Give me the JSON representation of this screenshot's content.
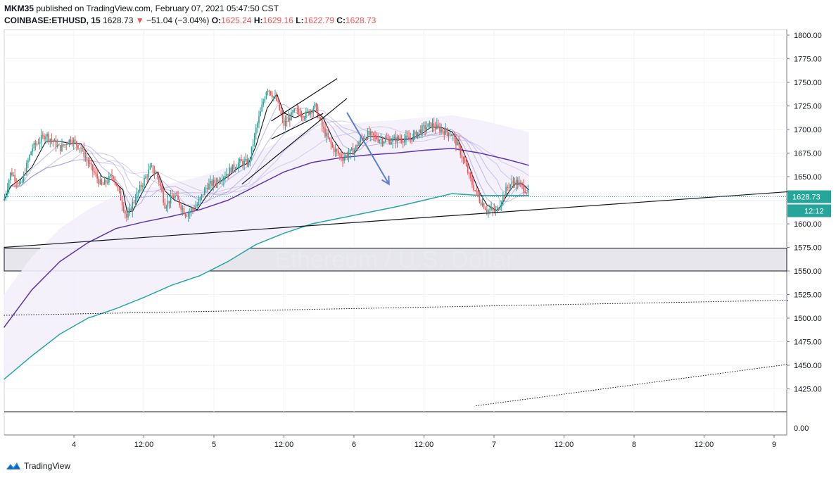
{
  "header": {
    "author": "MKM35",
    "published": "published on TradingView.com, February 07, 2021 05:47:50 CST",
    "symbol": "COINBASE:ETHUSD, 15",
    "last": "1628.73",
    "change_arrow": "▼",
    "change": "−51.04 (−3.04%)",
    "o_label": "O:",
    "o_value": "1625.24",
    "h_label": "H:",
    "h_value": "1629.16",
    "l_label": "L:",
    "l_value": "1622.79",
    "c_label": "C:",
    "c_value": "1628.73"
  },
  "branding": {
    "name": "TradingView",
    "icon": "tradingview-logo-icon"
  },
  "colors": {
    "up": "#26a69a",
    "down": "#ef5350",
    "ema_main": "#5e35b1",
    "ema_light": "#9b8fd3",
    "teal": "#26a6a6",
    "trendline": "#131722",
    "arrow": "#5b7fd1",
    "zone": "#e6e6ec"
  },
  "chart_data": {
    "type": "candlestick",
    "y_axis": {
      "range": [
        1405,
        1805
      ],
      "ticks": [
        "1800.00",
        "1775.00",
        "1750.00",
        "1725.00",
        "1700.00",
        "1675.00",
        "1650.00",
        "1625.00",
        "1600.00",
        "1575.00",
        "1550.00",
        "1525.00",
        "1500.00",
        "1475.00",
        "1450.00",
        "1425.00"
      ],
      "lower_pane_tick": "0.00"
    },
    "x_axis": {
      "ticks": [
        {
          "label": "4",
          "x": 3.0
        },
        {
          "label": "12:00",
          "x": 3.5
        },
        {
          "label": "5",
          "x": 4.0
        },
        {
          "label": "12:00",
          "x": 4.5
        },
        {
          "label": "6",
          "x": 5.0
        },
        {
          "label": "12:00",
          "x": 5.5
        },
        {
          "label": "7",
          "x": 6.0
        },
        {
          "label": "12:00",
          "x": 6.5
        },
        {
          "label": "8",
          "x": 7.0
        },
        {
          "label": "12:00",
          "x": 7.5
        },
        {
          "label": "9",
          "x": 8.0
        }
      ],
      "range": [
        2.5,
        8.1
      ]
    },
    "price_label": "1628.73",
    "countdown_label": "12:12",
    "price_path": [
      [
        2.5,
        1625
      ],
      [
        2.55,
        1655
      ],
      [
        2.62,
        1640
      ],
      [
        2.7,
        1680
      ],
      [
        2.8,
        1695
      ],
      [
        2.9,
        1680
      ],
      [
        2.98,
        1690
      ],
      [
        3.05,
        1680
      ],
      [
        3.12,
        1660
      ],
      [
        3.2,
        1640
      ],
      [
        3.28,
        1652
      ],
      [
        3.35,
        1620
      ],
      [
        3.38,
        1605
      ],
      [
        3.42,
        1622
      ],
      [
        3.48,
        1640
      ],
      [
        3.55,
        1660
      ],
      [
        3.6,
        1650
      ],
      [
        3.65,
        1620
      ],
      [
        3.72,
        1630
      ],
      [
        3.8,
        1610
      ],
      [
        3.88,
        1620
      ],
      [
        3.95,
        1640
      ],
      [
        4.02,
        1645
      ],
      [
        4.1,
        1655
      ],
      [
        4.18,
        1665
      ],
      [
        4.25,
        1665
      ],
      [
        4.3,
        1700
      ],
      [
        4.38,
        1745
      ],
      [
        4.45,
        1730
      ],
      [
        4.5,
        1705
      ],
      [
        4.58,
        1720
      ],
      [
        4.65,
        1715
      ],
      [
        4.72,
        1725
      ],
      [
        4.78,
        1700
      ],
      [
        4.85,
        1680
      ],
      [
        4.92,
        1670
      ],
      [
        5.0,
        1678
      ],
      [
        5.05,
        1690
      ],
      [
        5.1,
        1695
      ],
      [
        5.18,
        1690
      ],
      [
        5.25,
        1688
      ],
      [
        5.32,
        1690
      ],
      [
        5.4,
        1690
      ],
      [
        5.48,
        1700
      ],
      [
        5.55,
        1705
      ],
      [
        5.62,
        1700
      ],
      [
        5.7,
        1695
      ],
      [
        5.75,
        1680
      ],
      [
        5.8,
        1660
      ],
      [
        5.85,
        1640
      ],
      [
        5.9,
        1625
      ],
      [
        5.95,
        1615
      ],
      [
        6.02,
        1613
      ],
      [
        6.05,
        1625
      ],
      [
        6.1,
        1640
      ],
      [
        6.15,
        1645
      ],
      [
        6.2,
        1640
      ],
      [
        6.25,
        1632
      ]
    ],
    "ema_main": [
      [
        2.5,
        1490
      ],
      [
        2.7,
        1530
      ],
      [
        2.9,
        1560
      ],
      [
        3.1,
        1580
      ],
      [
        3.3,
        1595
      ],
      [
        3.5,
        1602
      ],
      [
        3.7,
        1608
      ],
      [
        3.9,
        1615
      ],
      [
        4.1,
        1625
      ],
      [
        4.3,
        1640
      ],
      [
        4.5,
        1655
      ],
      [
        4.7,
        1665
      ],
      [
        4.9,
        1670
      ],
      [
        5.1,
        1673
      ],
      [
        5.3,
        1675
      ],
      [
        5.5,
        1678
      ],
      [
        5.7,
        1680
      ],
      [
        5.9,
        1675
      ],
      [
        6.1,
        1668
      ],
      [
        6.25,
        1662
      ]
    ],
    "ema_teal": [
      [
        2.5,
        1435
      ],
      [
        2.7,
        1460
      ],
      [
        2.9,
        1483
      ],
      [
        3.1,
        1500
      ],
      [
        3.3,
        1510
      ],
      [
        3.5,
        1522
      ],
      [
        3.7,
        1535
      ],
      [
        3.9,
        1545
      ],
      [
        4.1,
        1560
      ],
      [
        4.3,
        1578
      ],
      [
        4.5,
        1590
      ],
      [
        4.7,
        1600
      ],
      [
        4.9,
        1606
      ],
      [
        5.1,
        1612
      ],
      [
        5.3,
        1618
      ],
      [
        5.5,
        1625
      ],
      [
        5.7,
        1632
      ],
      [
        5.9,
        1630
      ],
      [
        6.1,
        1630
      ],
      [
        6.25,
        1630
      ]
    ],
    "trendline": {
      "from": [
        2.5,
        1575
      ],
      "to": [
        8.1,
        1634
      ]
    },
    "support_zone": [
      1550,
      1574
    ],
    "dotted_lines": [
      {
        "from": [
          2.5,
          1503
        ],
        "to": [
          8.1,
          1519
        ]
      },
      {
        "from": [
          5.87,
          1407
        ],
        "to": [
          8.1,
          1451
        ]
      }
    ],
    "wedge_lines": [
      {
        "from": [
          4.41,
          1709
        ],
        "to": [
          4.88,
          1754
        ]
      },
      {
        "from": [
          4.2,
          1642
        ],
        "to": [
          4.95,
          1733
        ]
      },
      {
        "from": [
          4.41,
          1690
        ],
        "to": [
          4.78,
          1717
        ]
      }
    ],
    "arrow": {
      "from": [
        4.95,
        1718
      ],
      "to": [
        5.25,
        1642
      ]
    },
    "watermark": "Ethereum / U.S. Dollar"
  }
}
